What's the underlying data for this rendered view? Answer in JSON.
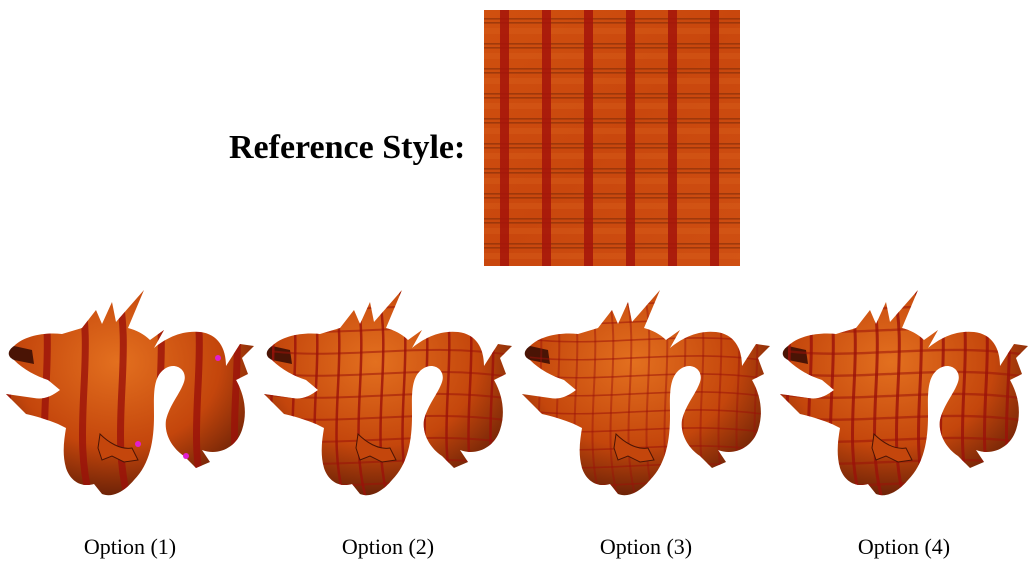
{
  "reference": {
    "label": "Reference Style:",
    "image": "plaid-texture-swatch",
    "colors": {
      "base": "#c9470d",
      "light": "#d9611e",
      "stripe": "#a4140a",
      "thin_line": "#7a2a0a"
    }
  },
  "options": [
    {
      "caption": "Option (1)",
      "image": "textured-dragon-render"
    },
    {
      "caption": "Option (2)",
      "image": "textured-dragon-render"
    },
    {
      "caption": "Option (3)",
      "image": "textured-dragon-render"
    },
    {
      "caption": "Option (4)",
      "image": "textured-dragon-render"
    }
  ],
  "dragon_colors": {
    "body": "#c4460c",
    "highlight": "#e3701f",
    "shadow": "#4a1405",
    "stripe": "#9b120a"
  }
}
